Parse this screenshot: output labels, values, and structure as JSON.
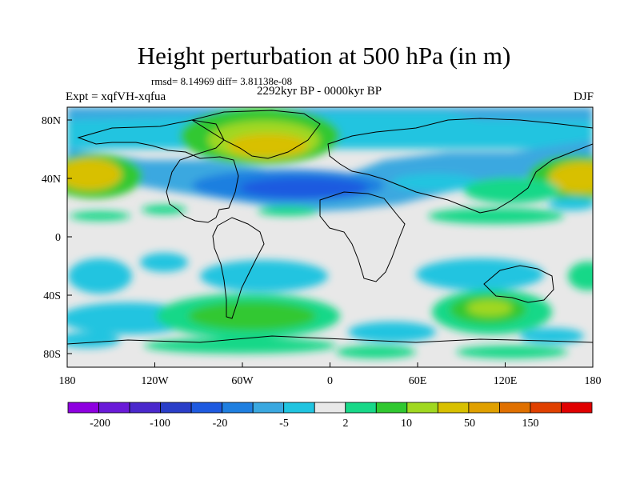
{
  "title": "Height perturbation at 500 hPa (in m)",
  "stats": "rmsd= 8.14969 diff= 3.81138e-08",
  "period": "2292kyr BP - 0000kyr BP",
  "experiment": "Expt = xqfVH-xqfua",
  "season": "DJF",
  "map": {
    "x_ticks": [
      "180",
      "120W",
      "60W",
      "0",
      "60E",
      "120E",
      "180"
    ],
    "y_ticks": [
      "80N",
      "40N",
      "0",
      "40S",
      "80S"
    ],
    "background_color": "#e8e8e8"
  },
  "colorbar": {
    "colors": [
      "#8e00e0",
      "#6a1ad8",
      "#4a28cc",
      "#2a3ec8",
      "#1e5ae0",
      "#1f7fe0",
      "#3aa8e0",
      "#20c4e0",
      "#e8e8e8",
      "#18d888",
      "#30c830",
      "#a0d820",
      "#d8c000",
      "#e0a000",
      "#e07000",
      "#e04000",
      "#e00000"
    ],
    "labels": [
      "-200",
      "-100",
      "-20",
      "-5",
      "2",
      "10",
      "50",
      "150"
    ]
  }
}
